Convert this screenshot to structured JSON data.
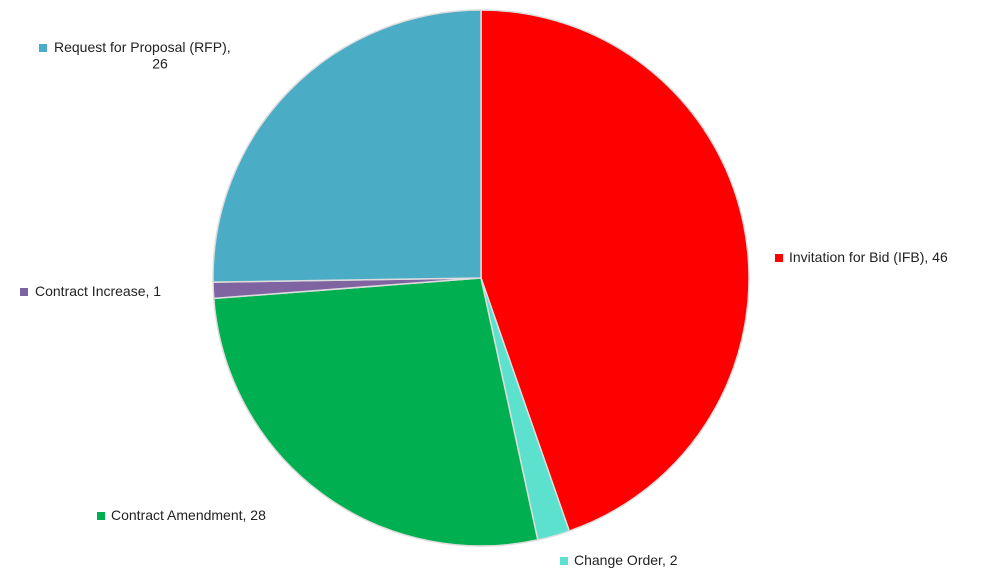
{
  "chart_data": {
    "type": "pie",
    "categories": [
      "Invitation for Bid (IFB)",
      "Change Order",
      "Contract Amendment",
      "Contract Increase",
      "Request for Proposal (RFP)"
    ],
    "values": [
      46,
      2,
      28,
      1,
      26
    ],
    "colors": [
      "#ff0000",
      "#5ce1cf",
      "#00b050",
      "#8064a2",
      "#4bacc6"
    ]
  }
}
